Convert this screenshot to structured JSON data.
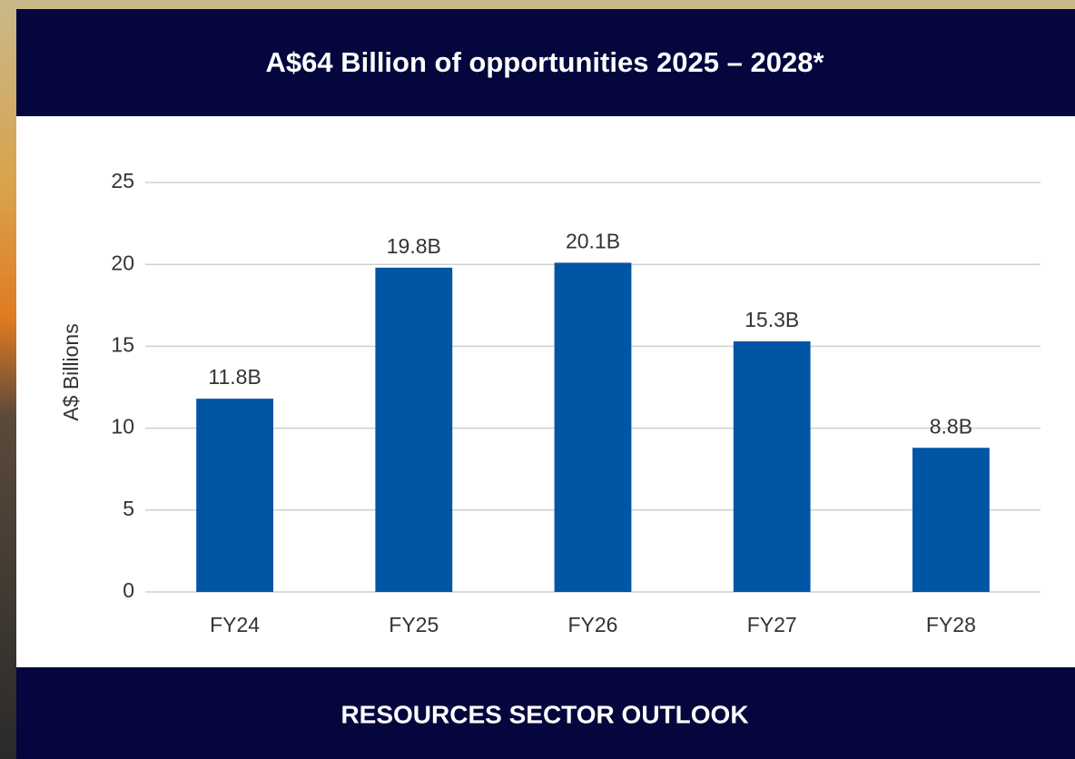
{
  "chart_data": {
    "type": "bar",
    "title": "A$64 Billion of opportunities 2025 – 2028*",
    "y_label": "A$ Billions",
    "categories": [
      "FY24",
      "FY25",
      "FY26",
      "FY27",
      "FY28"
    ],
    "values": [
      11.8,
      19.8,
      20.1,
      15.3,
      8.8
    ],
    "value_labels": [
      "11.8B",
      "19.8B",
      "20.1B",
      "15.3B",
      "8.8B"
    ],
    "color": "#0055a5",
    "ylim": [
      0,
      25
    ],
    "yticks": [
      0,
      5,
      10,
      15,
      20,
      25
    ],
    "grid": true
  },
  "footer": "RESOURCES SECTOR OUTLOOK"
}
